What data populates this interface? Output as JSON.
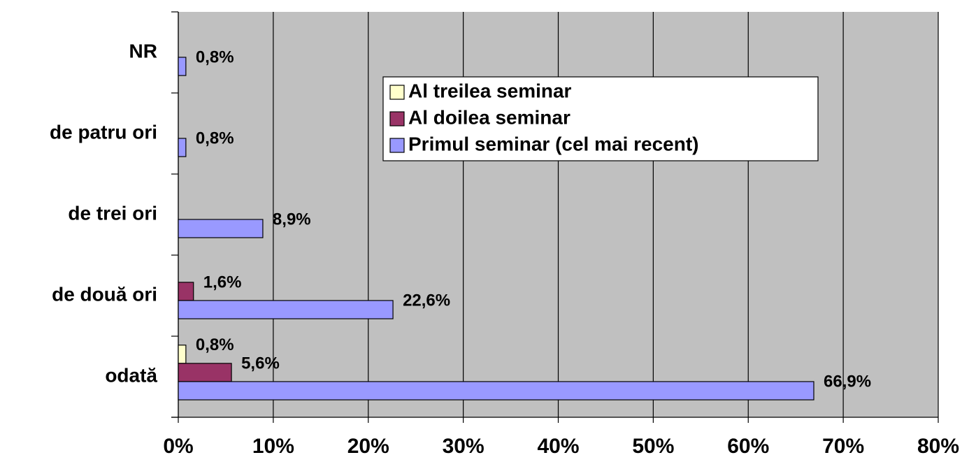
{
  "chart_data": {
    "type": "bar",
    "orientation": "horizontal",
    "categories": [
      "odată",
      "de două ori",
      "de trei ori",
      "de patru ori",
      "NR"
    ],
    "series": [
      {
        "name": "Al treilea seminar",
        "color": "#ffffcc",
        "values": [
          0.8,
          null,
          null,
          null,
          null
        ],
        "value_labels": [
          "0,8%",
          null,
          null,
          null,
          null
        ]
      },
      {
        "name": "Al doilea seminar",
        "color": "#993366",
        "values": [
          5.6,
          1.6,
          null,
          null,
          null
        ],
        "value_labels": [
          "5,6%",
          "1,6%",
          null,
          null,
          null
        ]
      },
      {
        "name": "Primul seminar (cel mai recent)",
        "color": "#9999ff",
        "values": [
          66.9,
          22.6,
          8.9,
          0.8,
          0.8
        ],
        "value_labels": [
          "66,9%",
          "22,6%",
          "8,9%",
          "0,8%",
          "0,8%"
        ]
      }
    ],
    "xlim": [
      0,
      80
    ],
    "xticks": [
      {
        "value": 0,
        "label": "0%"
      },
      {
        "value": 10,
        "label": "10%"
      },
      {
        "value": 20,
        "label": "20%"
      },
      {
        "value": 30,
        "label": "30%"
      },
      {
        "value": 40,
        "label": "40%"
      },
      {
        "value": 50,
        "label": "50%"
      },
      {
        "value": 60,
        "label": "60%"
      },
      {
        "value": 70,
        "label": "70%"
      },
      {
        "value": 80,
        "label": "80%"
      }
    ],
    "grid": true,
    "legend": "upper right"
  }
}
